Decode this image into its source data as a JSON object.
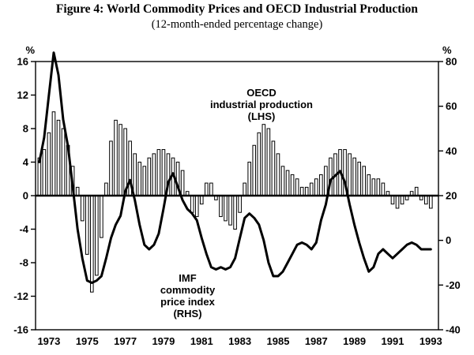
{
  "chart_data": {
    "type": "bar+line",
    "title": "Figure 4: World Commodity Prices and OECD Industrial Production",
    "subtitle": "(12-month-ended percentage change)",
    "left_axis": {
      "label": "%",
      "range": [
        -16,
        16
      ],
      "ticks": [
        16,
        12,
        8,
        4,
        0,
        -4,
        -8,
        -12,
        -16
      ]
    },
    "right_axis": {
      "label": "%",
      "range": [
        -40,
        80
      ],
      "ticks": [
        80,
        60,
        40,
        20,
        0,
        -20,
        -40
      ]
    },
    "x_ticks": [
      1973,
      1975,
      1977,
      1979,
      1981,
      1983,
      1985,
      1987,
      1989,
      1991,
      1993
    ],
    "x_range": [
      1972.3,
      1993.4
    ],
    "x_start": 1972.5,
    "x_step": 0.25,
    "grid": false,
    "legend_position": "in-plot-annotations",
    "annotations": {
      "oecd": "OECD\nindustrial production\n(LHS)",
      "imf": "IMF\ncommodity\nprice index\n(RHS)"
    },
    "series": [
      {
        "name": "OECD industrial production (LHS)",
        "type": "bar",
        "axis": "left",
        "values": [
          4.5,
          5.5,
          7.5,
          10,
          9,
          8,
          6,
          3.5,
          1,
          -3,
          -7,
          -11.5,
          -9.5,
          -5,
          1.5,
          6.5,
          9,
          8.5,
          8,
          6.5,
          5,
          4,
          3.5,
          4.5,
          5,
          5.5,
          5.5,
          5,
          4.5,
          4,
          3,
          0.5,
          -2,
          -2.5,
          -1,
          1.5,
          1.5,
          -0.5,
          -2.5,
          -3,
          -3.5,
          -4,
          -2,
          1.5,
          4,
          6,
          7.5,
          8.5,
          8,
          6.5,
          5,
          3.5,
          3,
          2.5,
          2,
          1,
          1,
          1.5,
          2,
          2.5,
          3.5,
          4.5,
          5,
          5.5,
          5.5,
          5,
          4.5,
          4,
          3.5,
          2.5,
          2,
          2,
          1.5,
          0.5,
          -1,
          -1.5,
          -1,
          -0.5,
          0.5,
          1,
          -0.5,
          -1,
          -1.5
        ]
      },
      {
        "name": "IMF commodity price index (RHS)",
        "type": "line",
        "axis": "right",
        "values": [
          35,
          46,
          65,
          84,
          74,
          54,
          42,
          24,
          5,
          -8,
          -18,
          -19,
          -18,
          -16,
          -8,
          1,
          7,
          11,
          22,
          27,
          18,
          7,
          -2,
          -4,
          -2,
          3,
          14,
          26,
          30,
          24,
          18,
          14,
          12,
          9,
          1,
          -6,
          -12,
          -13,
          -12,
          -13,
          -12,
          -8,
          1,
          10,
          12,
          10,
          7,
          0,
          -10,
          -16,
          -16,
          -14,
          -10,
          -6,
          -2,
          -1,
          -2,
          -4,
          -1,
          9,
          16,
          27,
          29,
          31,
          26,
          16,
          7,
          -1,
          -8,
          -14,
          -12,
          -6,
          -4,
          -6,
          -8,
          -6,
          -4,
          -2,
          -1,
          -2,
          -4,
          -4,
          -4
        ]
      }
    ]
  }
}
